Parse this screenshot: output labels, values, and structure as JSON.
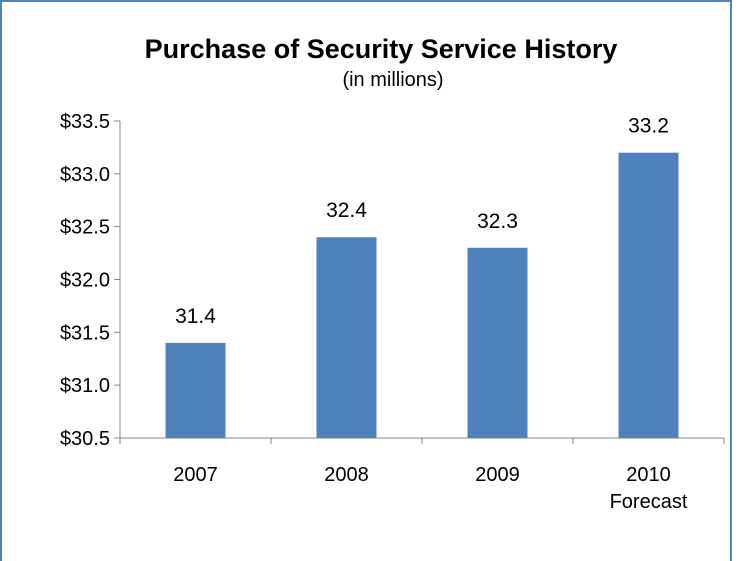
{
  "chart_data": {
    "type": "bar",
    "title": "Purchase of Security Service History",
    "subtitle": "(in millions)",
    "categories": [
      [
        "2007"
      ],
      [
        "2008"
      ],
      [
        "2009"
      ],
      [
        "2010",
        "Forecast"
      ]
    ],
    "values": [
      31.4,
      32.4,
      32.3,
      33.2
    ],
    "data_labels": [
      "31.4",
      "32.4",
      "32.3",
      "33.2"
    ],
    "ylim": [
      30.5,
      33.5
    ],
    "yticks": [
      30.5,
      31.0,
      31.5,
      32.0,
      32.5,
      33.0,
      33.5
    ],
    "ytick_labels": [
      "$30.5",
      "$31.0",
      "$31.5",
      "$32.0",
      "$32.5",
      "$33.0",
      "$33.5"
    ],
    "xlabel": "",
    "ylabel": "",
    "grid": false,
    "legend": "none",
    "colors": {
      "bar": "#4F81BD",
      "axis": "#868686",
      "border": "#4F81BD"
    }
  }
}
